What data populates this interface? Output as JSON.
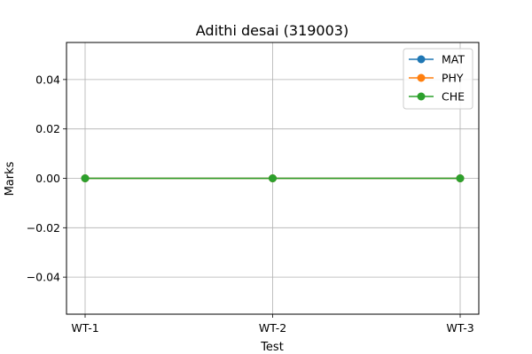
{
  "chart_data": {
    "type": "line",
    "title": "Adithi desai (319003)",
    "xlabel": "Test",
    "ylabel": "Marks",
    "categories": [
      "WT-1",
      "WT-2",
      "WT-3"
    ],
    "series": [
      {
        "name": "MAT",
        "values": [
          0,
          0,
          0
        ],
        "color": "#1f77b4"
      },
      {
        "name": "PHY",
        "values": [
          0,
          0,
          0
        ],
        "color": "#ff7f0e"
      },
      {
        "name": "CHE",
        "values": [
          0,
          0,
          0
        ],
        "color": "#2ca02c"
      }
    ],
    "ylim": [
      -0.055,
      0.055
    ],
    "yticks": [
      0.04,
      0.02,
      0.0,
      -0.02,
      -0.04
    ],
    "ytick_labels": [
      "0.04",
      "0.02",
      "0.00",
      "−0.02",
      "−0.04"
    ],
    "grid": true,
    "legend_position": "top-right",
    "marker": "circle"
  }
}
